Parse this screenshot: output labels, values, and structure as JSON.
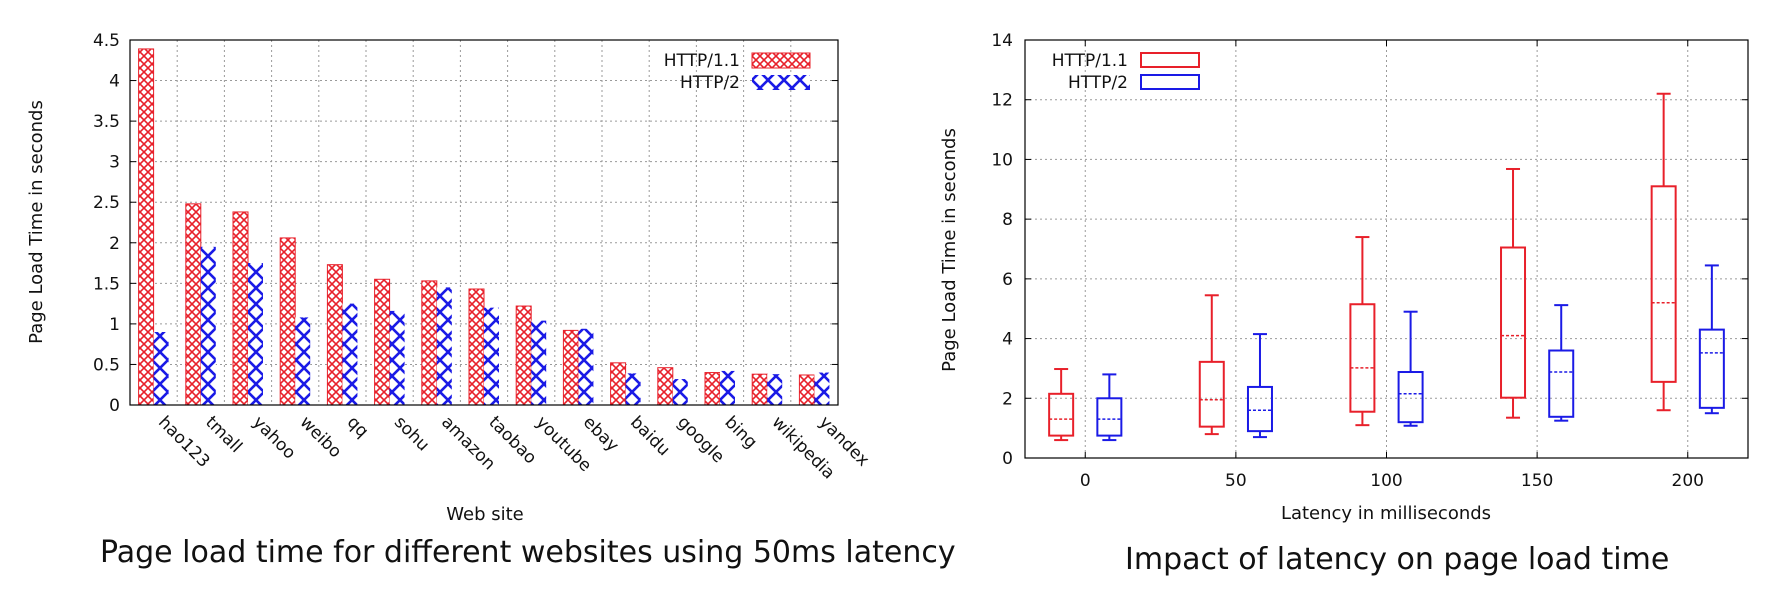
{
  "chart_data": [
    {
      "type": "bar",
      "caption": "Page load time for different websites using 50ms latency",
      "xlabel": "Web site",
      "ylabel": "Page Load Time in seconds",
      "ylim": [
        0,
        4.5
      ],
      "yticks": [
        "0",
        "0.5",
        "1",
        "1.5",
        "2",
        "2.5",
        "3",
        "3.5",
        "4",
        "4.5"
      ],
      "grid": true,
      "legend": "top-right",
      "categories": [
        "hao123",
        "tmall",
        "yahoo",
        "weibo",
        "qq",
        "sohu",
        "amazon",
        "taobao",
        "youtube",
        "ebay",
        "baidu",
        "google",
        "bing",
        "wikipedia",
        "yandex"
      ],
      "series": [
        {
          "name": "HTTP/1.1",
          "color": "#e8202a",
          "values": [
            4.39,
            2.48,
            2.38,
            2.06,
            1.73,
            1.55,
            1.53,
            1.43,
            1.22,
            0.92,
            0.52,
            0.46,
            0.4,
            0.38,
            0.37
          ]
        },
        {
          "name": "HTTP/2",
          "color": "#1a1ae6",
          "values": [
            0.9,
            1.95,
            1.75,
            1.08,
            1.25,
            1.16,
            1.45,
            1.2,
            1.04,
            0.94,
            0.39,
            0.32,
            0.42,
            0.38,
            0.4
          ]
        }
      ]
    },
    {
      "type": "box",
      "caption": "Impact of latency on page load time",
      "xlabel": "Latency in milliseconds",
      "ylabel": "Page Load Time in seconds",
      "ylim": [
        0,
        14
      ],
      "yticks": [
        "0",
        "2",
        "4",
        "6",
        "8",
        "10",
        "12",
        "14"
      ],
      "xticks": [
        "0",
        "50",
        "100",
        "150",
        "200"
      ],
      "grid": true,
      "legend": "top-left",
      "series": [
        {
          "name": "HTTP/1.1",
          "color": "#e8202a",
          "boxes": [
            {
              "latency": 0,
              "min": 0.6,
              "q1": 0.75,
              "median": 1.3,
              "q3": 2.15,
              "max": 2.98
            },
            {
              "latency": 50,
              "min": 0.8,
              "q1": 1.05,
              "median": 1.95,
              "q3": 3.22,
              "max": 5.45
            },
            {
              "latency": 100,
              "min": 1.1,
              "q1": 1.55,
              "median": 3.02,
              "q3": 5.15,
              "max": 7.4
            },
            {
              "latency": 150,
              "min": 1.35,
              "q1": 2.02,
              "median": 4.1,
              "q3": 7.05,
              "max": 9.68
            },
            {
              "latency": 200,
              "min": 1.6,
              "q1": 2.55,
              "median": 5.2,
              "q3": 9.1,
              "max": 12.2
            }
          ]
        },
        {
          "name": "HTTP/2",
          "color": "#1a1ae6",
          "boxes": [
            {
              "latency": 0,
              "min": 0.6,
              "q1": 0.75,
              "median": 1.3,
              "q3": 2.0,
              "max": 2.8
            },
            {
              "latency": 50,
              "min": 0.7,
              "q1": 0.9,
              "median": 1.6,
              "q3": 2.38,
              "max": 4.15
            },
            {
              "latency": 100,
              "min": 1.08,
              "q1": 1.2,
              "median": 2.15,
              "q3": 2.88,
              "max": 4.9
            },
            {
              "latency": 150,
              "min": 1.25,
              "q1": 1.38,
              "median": 2.88,
              "q3": 3.6,
              "max": 5.12
            },
            {
              "latency": 200,
              "min": 1.5,
              "q1": 1.68,
              "median": 3.52,
              "q3": 4.3,
              "max": 6.45
            }
          ]
        }
      ]
    }
  ]
}
